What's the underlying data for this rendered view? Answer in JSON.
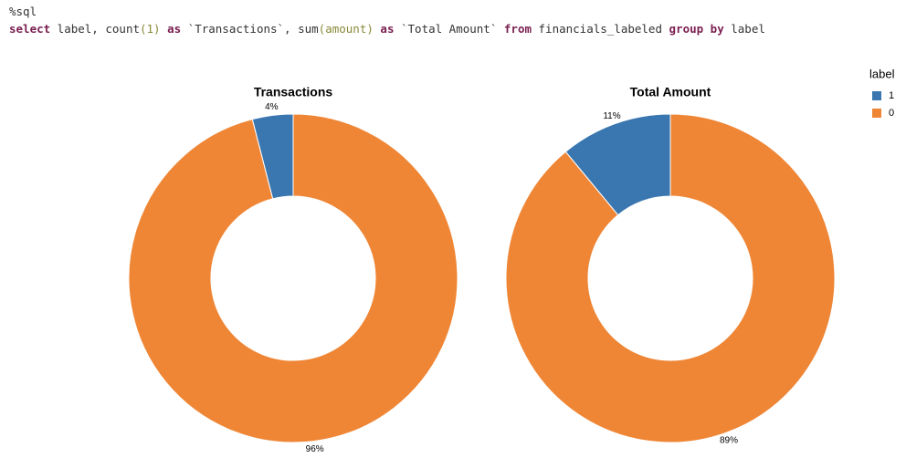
{
  "code": {
    "magic": "%sql",
    "query": [
      {
        "text": "select",
        "color": "#7a1f4f",
        "bold": true
      },
      {
        "text": " label, count",
        "color": "#333333",
        "bold": false
      },
      {
        "text": "(1)",
        "color": "#8a8a3a",
        "bold": false
      },
      {
        "text": " as",
        "color": "#7a1f4f",
        "bold": true
      },
      {
        "text": " `Transactions`, sum",
        "color": "#333333",
        "bold": false
      },
      {
        "text": "(amount)",
        "color": "#8a8a3a",
        "bold": false
      },
      {
        "text": " as",
        "color": "#7a1f4f",
        "bold": true
      },
      {
        "text": " `Total Amount` ",
        "color": "#333333",
        "bold": false
      },
      {
        "text": "from",
        "color": "#7a1f4f",
        "bold": true
      },
      {
        "text": " financials_labeled ",
        "color": "#333333",
        "bold": false
      },
      {
        "text": "group by",
        "color": "#7a1f4f",
        "bold": true
      },
      {
        "text": " label",
        "color": "#333333",
        "bold": false
      }
    ]
  },
  "legend": {
    "title": "label"
  },
  "chart_data": [
    {
      "type": "pie",
      "title": "Transactions",
      "categories": [
        "1",
        "0"
      ],
      "values": [
        4,
        96
      ],
      "value_labels": [
        "4%",
        "96%"
      ],
      "colors": [
        "#3a76af",
        "#ef8636"
      ]
    },
    {
      "type": "pie",
      "title": "Total Amount",
      "categories": [
        "1",
        "0"
      ],
      "values": [
        11,
        89
      ],
      "value_labels": [
        "11%",
        "89%"
      ],
      "colors": [
        "#3a76af",
        "#ef8636"
      ]
    }
  ]
}
